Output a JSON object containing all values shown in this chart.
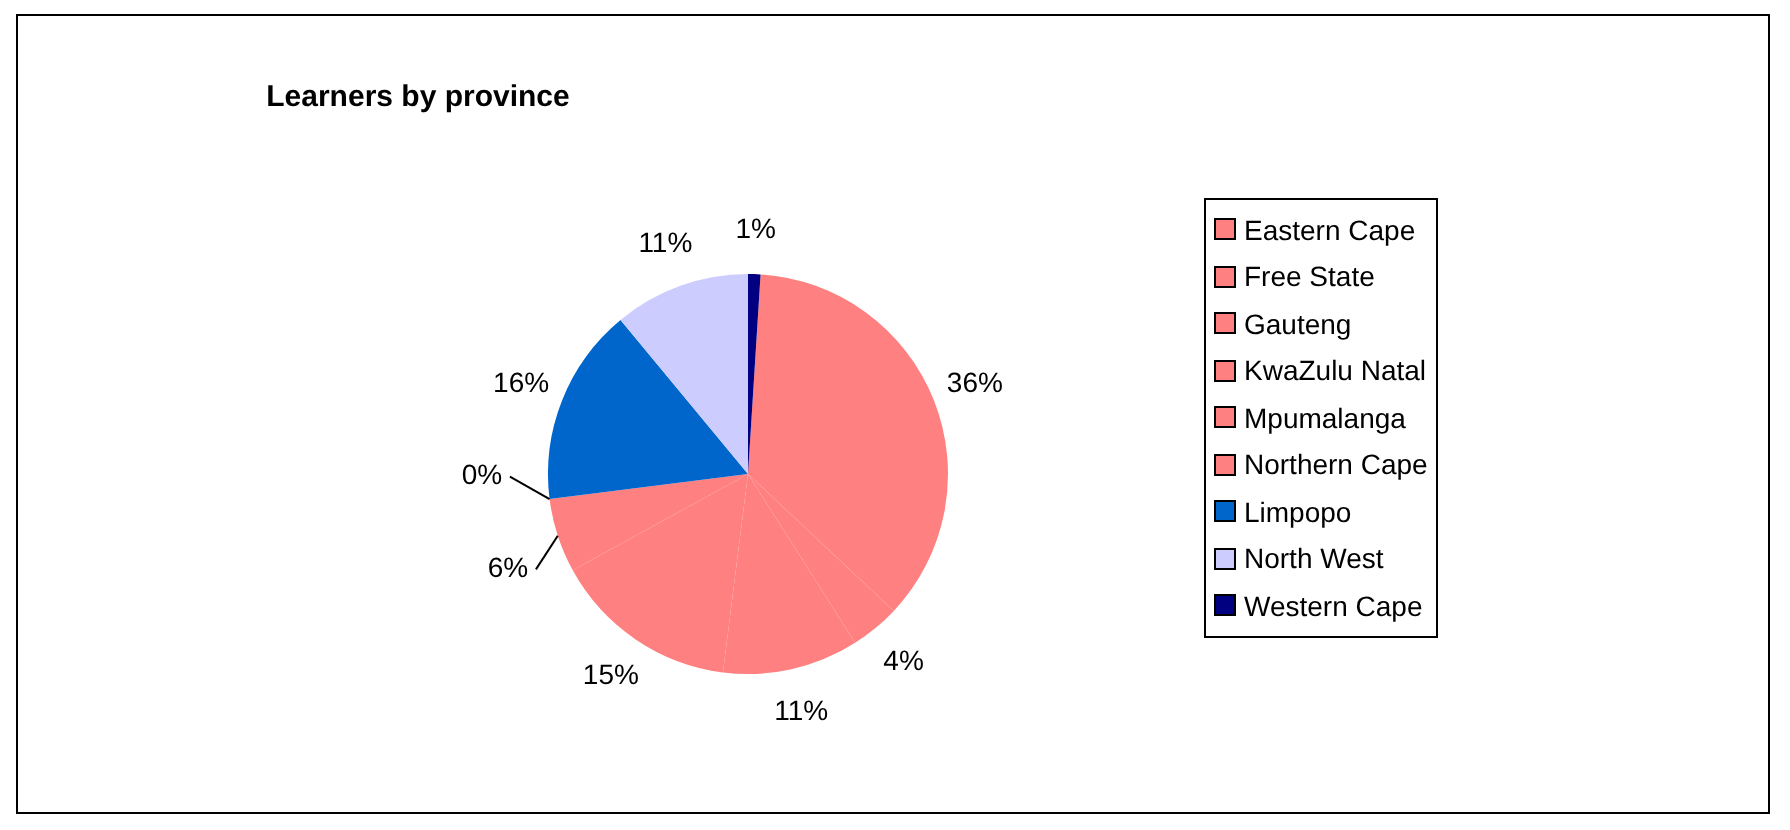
{
  "chart_data": {
    "type": "pie",
    "title": "Learners by province",
    "categories": [
      "Eastern Cape",
      "Free State",
      "Gauteng",
      "KwaZulu Natal",
      "Mpumalanga",
      "Northern Cape",
      "Limpopo",
      "North West",
      "Western Cape"
    ],
    "values": [
      36,
      4,
      11,
      15,
      6,
      0,
      16,
      11,
      1
    ],
    "colors": [
      "#ff8080",
      "#ff8080",
      "#ff8080",
      "#ff8080",
      "#ff8080",
      "#ff8080",
      "#0066cc",
      "#ccccff",
      "#000080"
    ],
    "value_labels": [
      "36%",
      "4%",
      "11%",
      "15%",
      "6%",
      "0%",
      "16%",
      "11%",
      "1%"
    ],
    "legend": "right"
  }
}
